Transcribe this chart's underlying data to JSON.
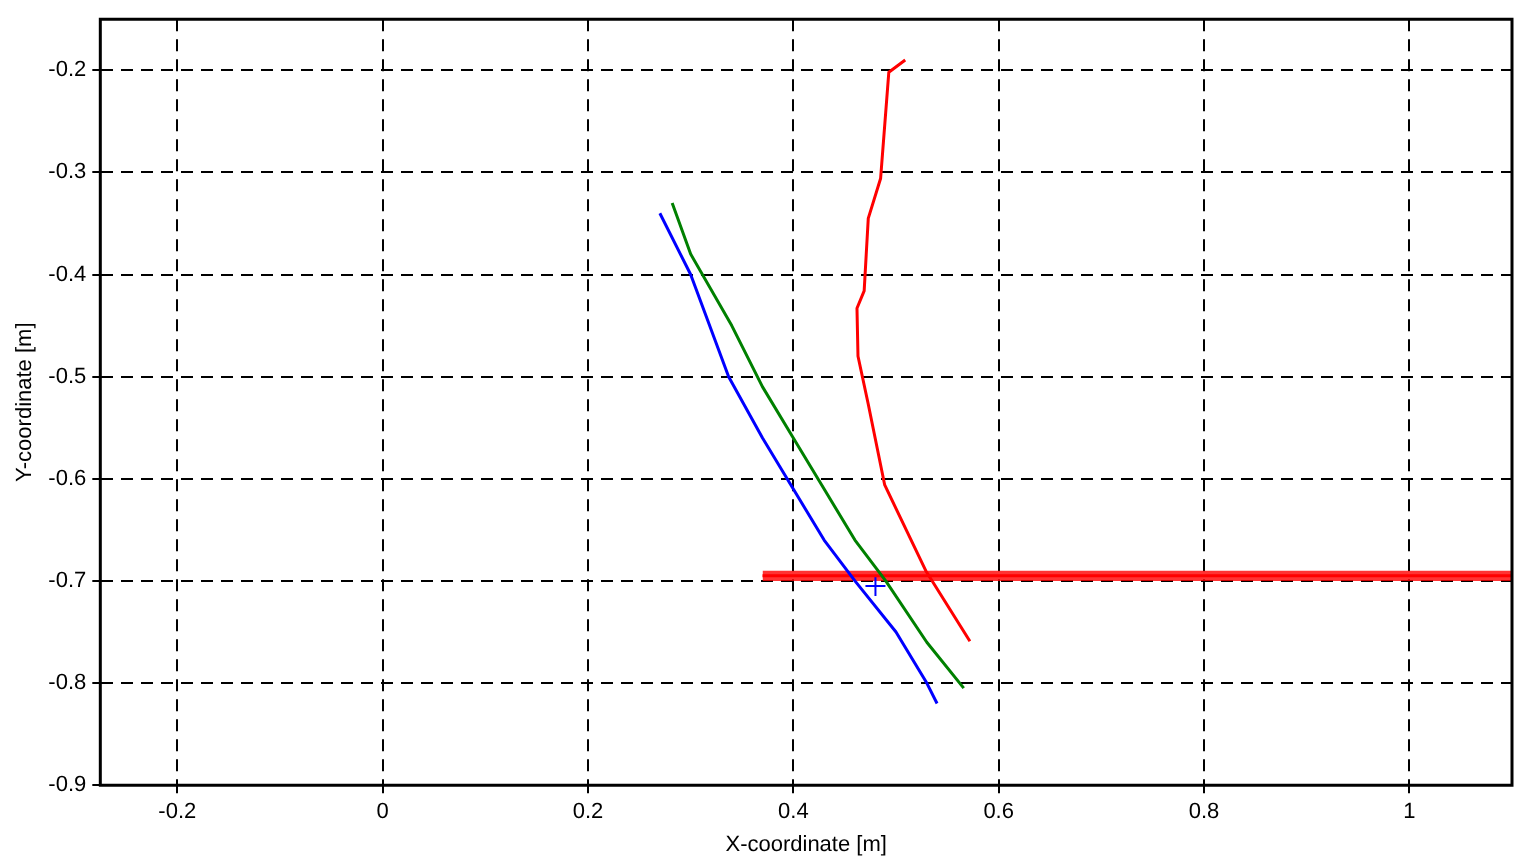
{
  "chart_data": {
    "type": "line",
    "xlabel": "X-coordinate [m]",
    "ylabel": "Y-coordinate [m]",
    "xlim": [
      -0.275,
      1.1
    ],
    "ylim": [
      -0.9,
      -0.15
    ],
    "xticks": [
      -0.2,
      0,
      0.2,
      0.4,
      0.6,
      0.8,
      1
    ],
    "yticks": [
      -0.9,
      -0.8,
      -0.7,
      -0.6,
      -0.5,
      -0.4,
      -0.3,
      -0.2
    ],
    "grid": true,
    "line_style": "solid",
    "marker": "none",
    "series": [
      {
        "color": "#0000ff",
        "x": [
          0.27,
          0.3,
          0.337,
          0.37,
          0.4,
          0.43,
          0.46,
          0.5,
          0.53,
          0.54
        ],
        "values": [
          -0.34,
          -0.4,
          -0.5,
          -0.56,
          -0.61,
          -0.66,
          -0.7,
          -0.75,
          -0.8,
          -0.82
        ]
      },
      {
        "color": "#008000",
        "x": [
          0.282,
          0.3,
          0.34,
          0.37,
          0.4,
          0.43,
          0.46,
          0.49,
          0.53,
          0.566
        ],
        "values": [
          -0.33,
          -0.38,
          -0.45,
          -0.51,
          -0.56,
          -0.61,
          -0.66,
          -0.7,
          -0.76,
          -0.805
        ]
      },
      {
        "color": "#ff0000",
        "x": [
          0.509,
          0.493,
          0.485,
          0.473,
          0.469,
          0.462,
          0.463,
          0.473,
          0.489,
          0.529,
          0.572
        ],
        "values": [
          -0.19,
          -0.202,
          -0.306,
          -0.345,
          -0.416,
          -0.433,
          -0.48,
          -0.527,
          -0.606,
          -0.69,
          -0.759
        ]
      },
      {
        "color": "#ff0000",
        "x": [
          0.37,
          1.1
        ],
        "values": [
          -0.695,
          -0.695
        ],
        "lower": [
          -0.7,
          -0.7
        ],
        "upper": [
          -0.69,
          -0.69
        ]
      },
      {
        "type": "scatter",
        "marker": "cross",
        "color": "#0000ff",
        "x": [
          0.48
        ],
        "values": [
          -0.705
        ]
      }
    ]
  }
}
